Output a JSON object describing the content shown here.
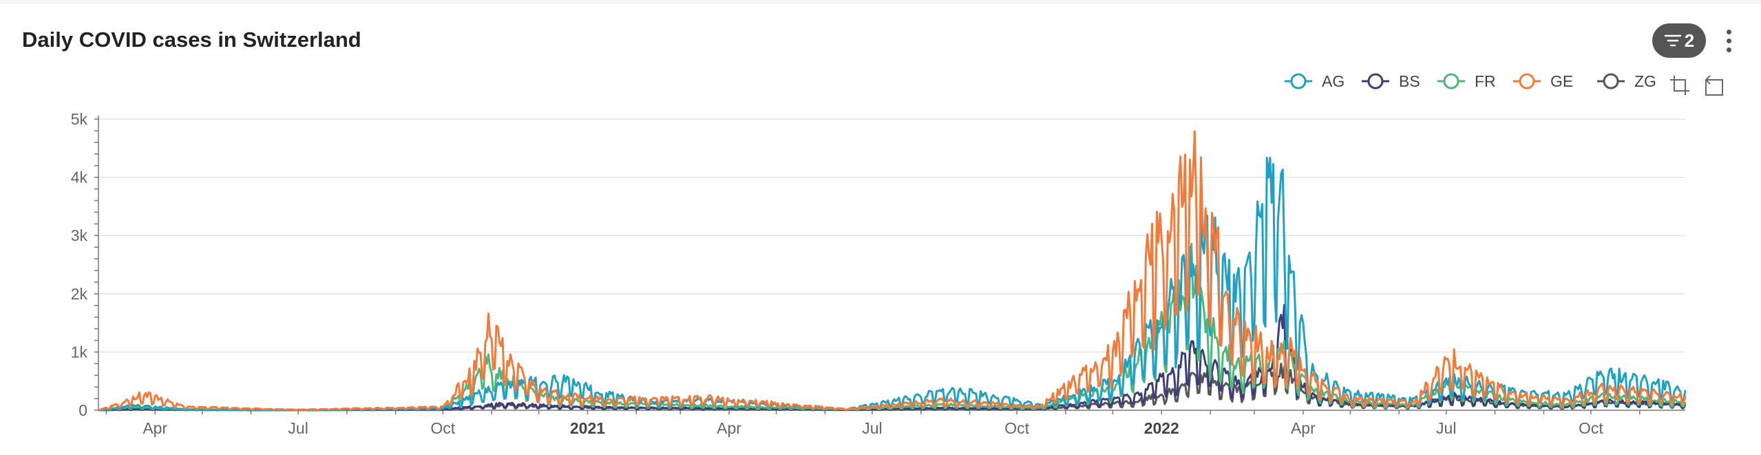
{
  "title": "Daily COVID cases in Switzerland",
  "toolbar": {
    "filter_count": "2",
    "icons": [
      "filter-icon",
      "more-vert-icon",
      "zoom-select-icon",
      "zoom-reset-icon"
    ]
  },
  "chart_data": {
    "type": "line",
    "title": "Daily COVID cases in Switzerland",
    "xlabel": "",
    "ylabel": "",
    "x_range": [
      "2020-02-25",
      "2022-11-30"
    ],
    "ylim": [
      0,
      5000
    ],
    "y_ticks": [
      {
        "value": 0,
        "label": "0"
      },
      {
        "value": 1000,
        "label": "1k"
      },
      {
        "value": 2000,
        "label": "2k"
      },
      {
        "value": 3000,
        "label": "3k"
      },
      {
        "value": 4000,
        "label": "4k"
      },
      {
        "value": 5000,
        "label": "5k"
      }
    ],
    "x_ticks": [
      {
        "date": "2020-04-01",
        "label": "Apr",
        "bold": false
      },
      {
        "date": "2020-07-01",
        "label": "Jul",
        "bold": false
      },
      {
        "date": "2020-10-01",
        "label": "Oct",
        "bold": false
      },
      {
        "date": "2021-01-01",
        "label": "2021",
        "bold": true
      },
      {
        "date": "2021-04-01",
        "label": "Apr",
        "bold": false
      },
      {
        "date": "2021-07-01",
        "label": "Jul",
        "bold": false
      },
      {
        "date": "2021-10-01",
        "label": "Oct",
        "bold": false
      },
      {
        "date": "2022-01-01",
        "label": "2022",
        "bold": true
      },
      {
        "date": "2022-04-01",
        "label": "Apr",
        "bold": false
      },
      {
        "date": "2022-07-01",
        "label": "Jul",
        "bold": false
      },
      {
        "date": "2022-10-01",
        "label": "Oct",
        "bold": false
      }
    ],
    "grid": true,
    "legend_position": "top-right",
    "series": [
      {
        "name": "ZG",
        "color": "#555555",
        "points": [
          [
            "2020-02-25",
            0
          ],
          [
            "2020-03-20",
            15
          ],
          [
            "2020-04-20",
            5
          ],
          [
            "2020-07-01",
            2
          ],
          [
            "2020-10-01",
            10
          ],
          [
            "2020-10-25",
            60
          ],
          [
            "2020-11-10",
            90
          ],
          [
            "2020-12-10",
            60
          ],
          [
            "2021-01-15",
            40
          ],
          [
            "2021-03-20",
            25
          ],
          [
            "2021-06-15",
            5
          ],
          [
            "2021-08-15",
            25
          ],
          [
            "2021-10-15",
            20
          ],
          [
            "2021-12-15",
            150
          ],
          [
            "2022-01-10",
            350
          ],
          [
            "2022-01-20",
            600
          ],
          [
            "2022-02-01",
            550
          ],
          [
            "2022-02-20",
            350
          ],
          [
            "2022-03-10",
            600
          ],
          [
            "2022-03-20",
            700
          ],
          [
            "2022-04-05",
            250
          ],
          [
            "2022-05-01",
            100
          ],
          [
            "2022-06-10",
            80
          ],
          [
            "2022-07-05",
            220
          ],
          [
            "2022-08-10",
            100
          ],
          [
            "2022-09-15",
            60
          ],
          [
            "2022-10-10",
            150
          ],
          [
            "2022-11-30",
            90
          ]
        ]
      },
      {
        "name": "BS",
        "color": "#3d3d7a",
        "points": [
          [
            "2020-02-25",
            0
          ],
          [
            "2020-03-20",
            30
          ],
          [
            "2020-04-20",
            8
          ],
          [
            "2020-07-01",
            2
          ],
          [
            "2020-10-01",
            15
          ],
          [
            "2020-10-25",
            80
          ],
          [
            "2020-11-10",
            120
          ],
          [
            "2020-12-10",
            80
          ],
          [
            "2021-01-15",
            50
          ],
          [
            "2021-03-20",
            35
          ],
          [
            "2021-06-15",
            8
          ],
          [
            "2021-08-15",
            40
          ],
          [
            "2021-10-15",
            25
          ],
          [
            "2021-12-15",
            250
          ],
          [
            "2022-01-10",
            700
          ],
          [
            "2022-01-20",
            1050
          ],
          [
            "2022-02-01",
            800
          ],
          [
            "2022-02-20",
            450
          ],
          [
            "2022-03-10",
            700
          ],
          [
            "2022-03-20",
            1600
          ],
          [
            "2022-03-28",
            500
          ],
          [
            "2022-04-10",
            200
          ],
          [
            "2022-05-10",
            90
          ],
          [
            "2022-06-10",
            70
          ],
          [
            "2022-07-05",
            260
          ],
          [
            "2022-08-10",
            110
          ],
          [
            "2022-09-15",
            60
          ],
          [
            "2022-10-10",
            160
          ],
          [
            "2022-11-30",
            100
          ]
        ]
      },
      {
        "name": "FR",
        "color": "#4cb879",
        "points": [
          [
            "2020-02-25",
            0
          ],
          [
            "2020-03-20",
            60
          ],
          [
            "2020-04-20",
            10
          ],
          [
            "2020-07-01",
            3
          ],
          [
            "2020-10-01",
            30
          ],
          [
            "2020-10-20",
            500
          ],
          [
            "2020-10-28",
            900
          ],
          [
            "2020-11-08",
            600
          ],
          [
            "2020-12-10",
            200
          ],
          [
            "2021-01-15",
            120
          ],
          [
            "2021-03-20",
            80
          ],
          [
            "2021-06-15",
            15
          ],
          [
            "2021-08-15",
            100
          ],
          [
            "2021-10-15",
            40
          ],
          [
            "2021-12-01",
            400
          ],
          [
            "2021-12-20",
            1000
          ],
          [
            "2022-01-10",
            1800
          ],
          [
            "2022-01-20",
            2400
          ],
          [
            "2022-02-01",
            1400
          ],
          [
            "2022-02-20",
            800
          ],
          [
            "2022-03-10",
            900
          ],
          [
            "2022-03-20",
            1000
          ],
          [
            "2022-04-05",
            400
          ],
          [
            "2022-05-01",
            150
          ],
          [
            "2022-06-10",
            90
          ],
          [
            "2022-07-05",
            500
          ],
          [
            "2022-08-10",
            180
          ],
          [
            "2022-09-15",
            90
          ],
          [
            "2022-10-10",
            250
          ],
          [
            "2022-11-30",
            140
          ]
        ]
      },
      {
        "name": "AG",
        "color": "#1da1c4",
        "points": [
          [
            "2020-02-25",
            0
          ],
          [
            "2020-03-20",
            90
          ],
          [
            "2020-04-20",
            15
          ],
          [
            "2020-07-01",
            5
          ],
          [
            "2020-10-01",
            30
          ],
          [
            "2020-10-25",
            300
          ],
          [
            "2020-11-10",
            450
          ],
          [
            "2020-12-01",
            520
          ],
          [
            "2020-12-20",
            500
          ],
          [
            "2021-01-10",
            300
          ],
          [
            "2021-02-10",
            150
          ],
          [
            "2021-03-20",
            180
          ],
          [
            "2021-06-15",
            20
          ],
          [
            "2021-08-20",
            350
          ],
          [
            "2021-09-10",
            280
          ],
          [
            "2021-10-15",
            90
          ],
          [
            "2021-12-01",
            500
          ],
          [
            "2021-12-20",
            1200
          ],
          [
            "2022-01-10",
            2000
          ],
          [
            "2022-01-20",
            2700
          ],
          [
            "2022-02-01",
            3100
          ],
          [
            "2022-02-15",
            2100
          ],
          [
            "2022-02-25",
            2600
          ],
          [
            "2022-03-10",
            3800
          ],
          [
            "2022-03-16",
            4050
          ],
          [
            "2022-03-25",
            2300
          ],
          [
            "2022-04-05",
            700
          ],
          [
            "2022-05-01",
            300
          ],
          [
            "2022-06-10",
            180
          ],
          [
            "2022-07-05",
            550
          ],
          [
            "2022-08-10",
            350
          ],
          [
            "2022-09-15",
            250
          ],
          [
            "2022-10-10",
            650
          ],
          [
            "2022-11-30",
            350
          ]
        ]
      },
      {
        "name": "GE",
        "color": "#f47a3a",
        "points": [
          [
            "2020-02-25",
            0
          ],
          [
            "2020-03-10",
            120
          ],
          [
            "2020-03-25",
            300
          ],
          [
            "2020-04-20",
            60
          ],
          [
            "2020-07-01",
            10
          ],
          [
            "2020-10-01",
            60
          ],
          [
            "2020-10-20",
            700
          ],
          [
            "2020-10-28",
            1350
          ],
          [
            "2020-11-02",
            1450
          ],
          [
            "2020-11-10",
            900
          ],
          [
            "2020-12-01",
            350
          ],
          [
            "2020-12-20",
            250
          ],
          [
            "2021-01-15",
            200
          ],
          [
            "2021-03-20",
            220
          ],
          [
            "2021-06-15",
            20
          ],
          [
            "2021-08-15",
            180
          ],
          [
            "2021-10-15",
            70
          ],
          [
            "2021-12-01",
            1000
          ],
          [
            "2021-12-20",
            2400
          ],
          [
            "2022-01-05",
            3300
          ],
          [
            "2022-01-15",
            3800
          ],
          [
            "2022-01-22",
            4100
          ],
          [
            "2022-02-01",
            3200
          ],
          [
            "2022-02-15",
            1700
          ],
          [
            "2022-03-10",
            1000
          ],
          [
            "2022-03-25",
            1100
          ],
          [
            "2022-04-05",
            600
          ],
          [
            "2022-05-01",
            200
          ],
          [
            "2022-06-10",
            150
          ],
          [
            "2022-07-05",
            950
          ],
          [
            "2022-07-20",
            600
          ],
          [
            "2022-08-10",
            300
          ],
          [
            "2022-09-15",
            180
          ],
          [
            "2022-10-10",
            400
          ],
          [
            "2022-11-30",
            250
          ]
        ]
      }
    ],
    "legend_order": [
      "AG",
      "BS",
      "FR",
      "GE",
      "ZG"
    ]
  }
}
